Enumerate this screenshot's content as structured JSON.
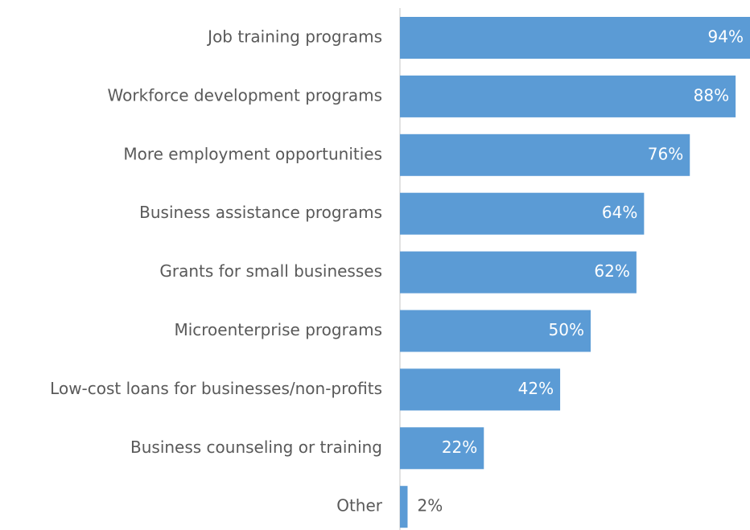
{
  "chart_data": {
    "type": "bar",
    "orientation": "horizontal",
    "categories": [
      "Job training programs",
      "Workforce development programs",
      "More employment opportunities",
      "Business assistance programs",
      "Grants for small businesses",
      "Microenterprise programs",
      "Low-cost loans for businesses/non-profits",
      "Business counseling or training",
      "Other"
    ],
    "values": [
      94,
      88,
      76,
      64,
      62,
      50,
      42,
      22,
      2
    ],
    "value_labels": [
      "94%",
      "88%",
      "76%",
      "64%",
      "62%",
      "50%",
      "42%",
      "22%",
      "2%"
    ],
    "color": "#5b9bd5"
  }
}
